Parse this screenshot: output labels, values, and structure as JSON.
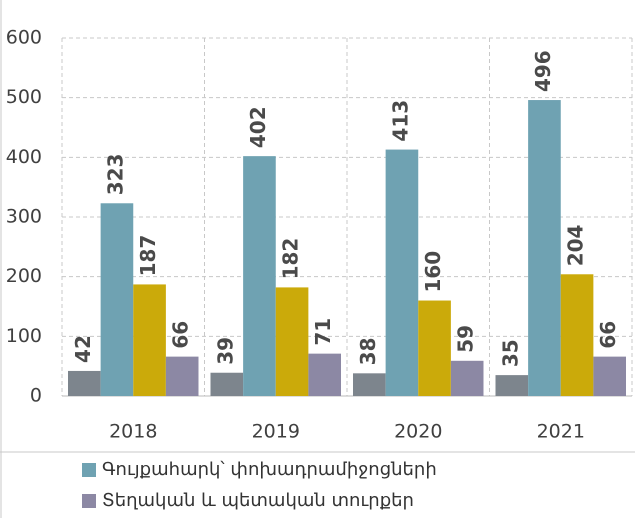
{
  "chart_data": {
    "type": "bar",
    "categories": [
      "2018",
      "2019",
      "2020",
      "2021"
    ],
    "series": [
      {
        "color": "#7d858d",
        "values": [
          42,
          39,
          38,
          35
        ]
      },
      {
        "name": "Գույքահարկ՝ փոխադրամիջոցների",
        "color": "#6fa2b2",
        "values": [
          323,
          402,
          413,
          496
        ]
      },
      {
        "color": "#cbaa0a",
        "values": [
          187,
          182,
          160,
          204
        ]
      },
      {
        "name": "Տեղական և պետական տուրքեր",
        "color": "#8c88a4",
        "values": [
          66,
          71,
          59,
          66
        ]
      }
    ],
    "ylim": [
      0,
      600
    ],
    "yticks": [
      0,
      100,
      200,
      300,
      400,
      500,
      600
    ],
    "grid": true
  }
}
